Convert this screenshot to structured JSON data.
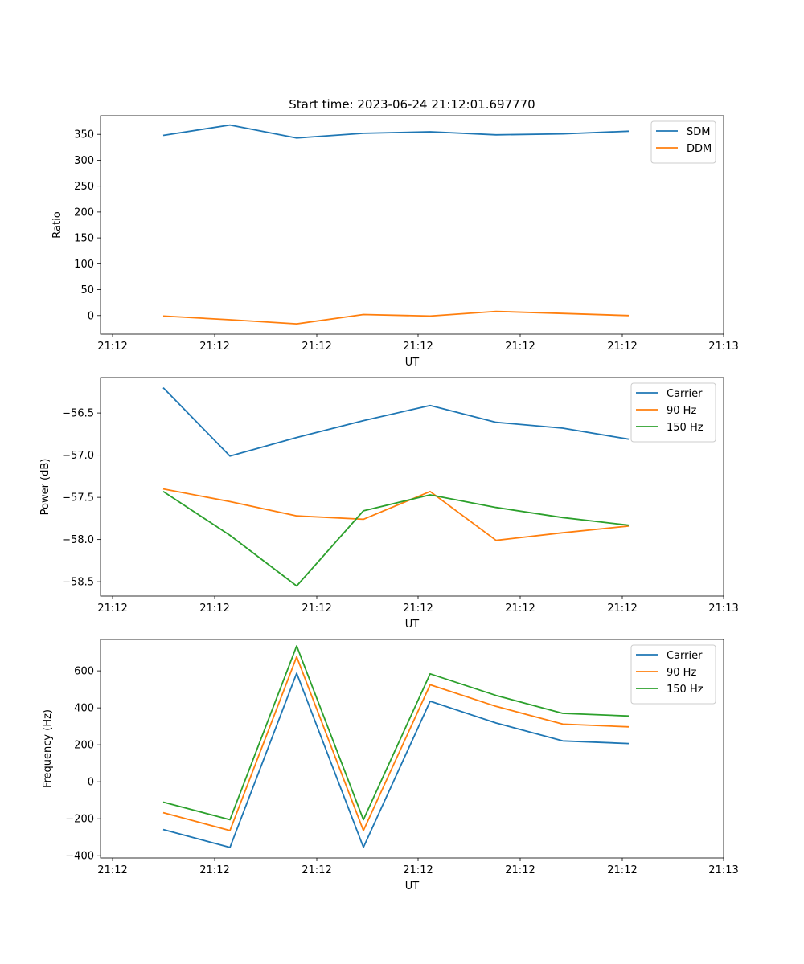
{
  "figure": {
    "title": "Start time: 2023-06-24 21:12:01.697770"
  },
  "colors": {
    "blue": "#1f77b4",
    "orange": "#ff7f0e",
    "green": "#2ca02c"
  },
  "chart_data": [
    {
      "type": "line",
      "title": "Start time: 2023-06-24 21:12:01.697770",
      "xlabel": "UT",
      "ylabel": "Ratio",
      "x_tick_labels": [
        "21:12",
        "21:12",
        "21:12",
        "21:12",
        "21:12",
        "21:12",
        "21:13"
      ],
      "y_ticks": [
        0,
        50,
        100,
        150,
        200,
        250,
        300,
        350
      ],
      "ylim": [
        -36,
        386
      ],
      "grid": false,
      "legend_position": "upper right",
      "series": [
        {
          "name": "SDM",
          "color": "#1f77b4",
          "values": [
            348,
            368,
            343,
            352,
            355,
            349,
            351,
            356
          ]
        },
        {
          "name": "DDM",
          "color": "#ff7f0e",
          "values": [
            -1,
            -8,
            -16,
            2,
            -1,
            8,
            4,
            0
          ]
        }
      ]
    },
    {
      "type": "line",
      "title": "",
      "xlabel": "UT",
      "ylabel": "Power (dB)",
      "x_tick_labels": [
        "21:12",
        "21:12",
        "21:12",
        "21:12",
        "21:12",
        "21:12",
        "21:13"
      ],
      "y_ticks": [
        -58.5,
        -58.0,
        -57.5,
        -57.0,
        -56.5
      ],
      "y_tick_labels": [
        "−58.5",
        "−58.0",
        "−57.5",
        "−57.0",
        "−56.5"
      ],
      "ylim": [
        -58.67,
        -56.08
      ],
      "grid": false,
      "legend_position": "upper right",
      "series": [
        {
          "name": "Carrier",
          "color": "#1f77b4",
          "values": [
            -56.2,
            -57.01,
            -56.79,
            -56.59,
            -56.41,
            -56.61,
            -56.68,
            -56.81
          ]
        },
        {
          "name": "90 Hz",
          "color": "#ff7f0e",
          "values": [
            -57.4,
            -57.55,
            -57.72,
            -57.76,
            -57.43,
            -58.01,
            -57.92,
            -57.84
          ]
        },
        {
          "name": "150 Hz",
          "color": "#2ca02c",
          "values": [
            -57.43,
            -57.95,
            -58.55,
            -57.66,
            -57.47,
            -57.62,
            -57.74,
            -57.83
          ]
        }
      ]
    },
    {
      "type": "line",
      "title": "",
      "xlabel": "UT",
      "ylabel": "Frequency (Hz)",
      "x_tick_labels": [
        "21:12",
        "21:12",
        "21:12",
        "21:12",
        "21:12",
        "21:12",
        "21:13"
      ],
      "y_ticks": [
        -400,
        -200,
        0,
        200,
        400,
        600
      ],
      "y_tick_labels": [
        "−400",
        "−200",
        "0",
        "200",
        "400",
        "600"
      ],
      "ylim": [
        -412,
        770
      ],
      "grid": false,
      "legend_position": "upper right",
      "series": [
        {
          "name": "Carrier",
          "color": "#1f77b4",
          "values": [
            -258,
            -355,
            587,
            -354,
            436,
            318,
            221,
            207
          ]
        },
        {
          "name": "90 Hz",
          "color": "#ff7f0e",
          "values": [
            -167,
            -264,
            676,
            -264,
            525,
            408,
            312,
            297
          ]
        },
        {
          "name": "150 Hz",
          "color": "#2ca02c",
          "values": [
            -110,
            -205,
            735,
            -205,
            584,
            467,
            370,
            356
          ]
        }
      ]
    }
  ]
}
